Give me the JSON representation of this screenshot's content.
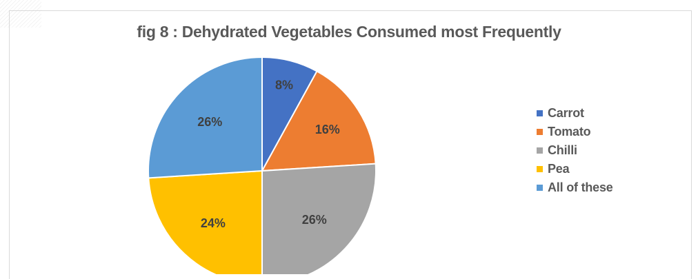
{
  "chart_data": {
    "type": "pie",
    "title": "fig 8 : Dehydrated Vegetables Consumed most Frequently",
    "categories": [
      "Carrot",
      "Tomato",
      "Chilli",
      "Pea",
      "All of these"
    ],
    "values": [
      8,
      16,
      26,
      24,
      26
    ],
    "labels": [
      "8%",
      "16%",
      "26%",
      "24%",
      "26%"
    ],
    "colors": [
      "#4472C4",
      "#ED7D31",
      "#A5A5A5",
      "#FFC000",
      "#5B9BD5"
    ],
    "legend_position": "right"
  }
}
